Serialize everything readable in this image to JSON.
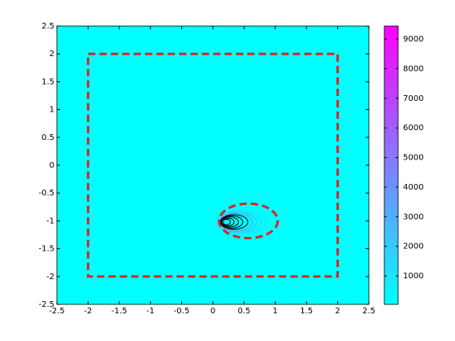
{
  "chart_data": {
    "type": "contour",
    "xlim": [
      -2.5,
      2.5
    ],
    "ylim": [
      -2.5,
      2.5
    ],
    "xticks": [
      -2.5,
      -2,
      -1.5,
      -1,
      -0.5,
      0,
      0.5,
      1,
      1.5,
      2,
      2.5
    ],
    "yticks": [
      -2.5,
      -2,
      -1.5,
      -1,
      -0.5,
      0,
      0.5,
      1,
      1.5,
      2,
      2.5
    ],
    "colormap": [
      "#00ffff",
      "#ff00ff"
    ],
    "clim": [
      40,
      9440
    ],
    "cticks": [
      1000,
      2000,
      3000,
      4000,
      5000,
      6000,
      7000,
      8000,
      9000
    ],
    "contours": [
      {
        "level": 1000,
        "cx": 0.45,
        "cy": -1.02,
        "rx": 0.4,
        "ry": 0.22
      },
      {
        "level": 2000,
        "cx": 0.42,
        "cy": -1.02,
        "rx": 0.35,
        "ry": 0.19
      },
      {
        "level": 3000,
        "cx": 0.4,
        "cy": -1.02,
        "rx": 0.3,
        "ry": 0.17
      },
      {
        "level": 4000,
        "cx": 0.37,
        "cy": -1.02,
        "rx": 0.26,
        "ry": 0.15
      },
      {
        "level": 5000,
        "cx": 0.34,
        "cy": -1.02,
        "rx": 0.22,
        "ry": 0.13
      },
      {
        "level": 6000,
        "cx": 0.3,
        "cy": -1.02,
        "rx": 0.18,
        "ry": 0.11
      },
      {
        "level": 7000,
        "cx": 0.27,
        "cy": -1.02,
        "rx": 0.14,
        "ry": 0.09
      },
      {
        "level": 8000,
        "cx": 0.24,
        "cy": -1.02,
        "rx": 0.1,
        "ry": 0.07
      },
      {
        "level": 9000,
        "cx": 0.22,
        "cy": -1.02,
        "rx": 0.06,
        "ry": 0.05
      }
    ],
    "rectangle": {
      "x": [
        -2,
        2
      ],
      "y": [
        -2,
        2
      ],
      "color": "#d62728"
    },
    "ellipse": {
      "cx": 0.57,
      "cy": -1.0,
      "rx": 0.47,
      "ry": 0.31,
      "color": "#d62728"
    }
  }
}
